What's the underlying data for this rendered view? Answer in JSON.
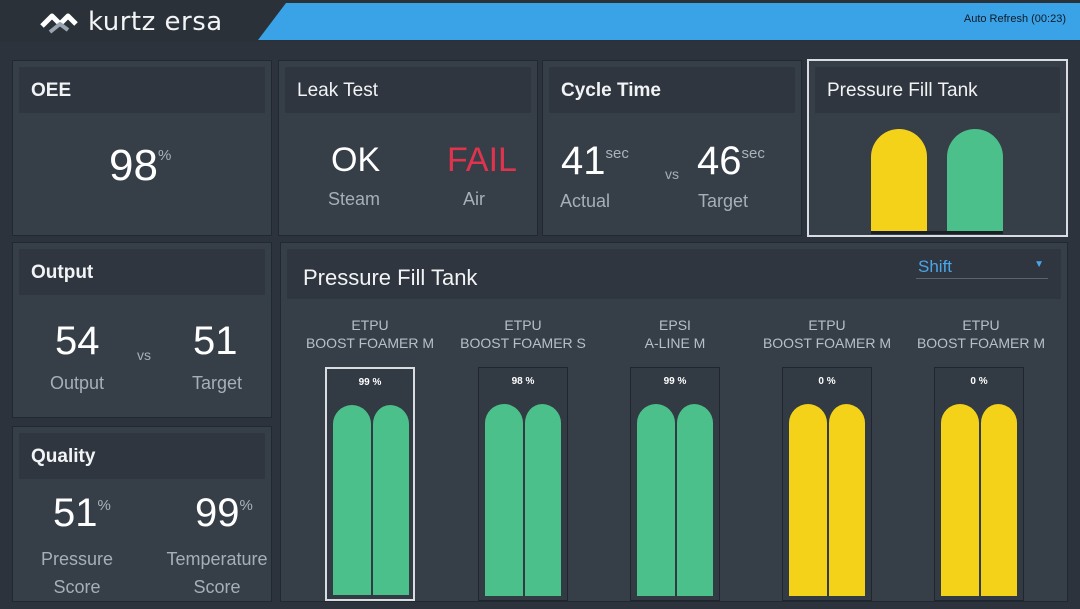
{
  "header": {
    "brand": "kurtz ersa",
    "auto_refresh": "Auto Refresh (00:23)",
    "accent_color": "#3aa3e8"
  },
  "oee": {
    "title": "OEE",
    "value": "98",
    "unit": "%"
  },
  "leak_test": {
    "title": "Leak Test",
    "steam_value": "OK",
    "steam_label": "Steam",
    "air_value": "FAIL",
    "air_label": "Air"
  },
  "cycle_time": {
    "title": "Cycle Time",
    "actual_value": "41",
    "actual_unit": "sec",
    "actual_label": "Actual",
    "vs": "vs",
    "target_value": "46",
    "target_unit": "sec",
    "target_label": "Target"
  },
  "pressure_fill_small": {
    "title": "Pressure Fill Tank",
    "tanks": [
      {
        "color": "yellow"
      },
      {
        "color": "green"
      }
    ]
  },
  "output": {
    "title": "Output",
    "output_value": "54",
    "output_label": "Output",
    "vs": "vs",
    "target_value": "51",
    "target_label": "Target"
  },
  "quality": {
    "title": "Quality",
    "pressure_value": "51",
    "pressure_unit": "%",
    "pressure_label_1": "Pressure",
    "pressure_label_2": "Score",
    "temperature_value": "99",
    "temperature_unit": "%",
    "temperature_label_1": "Temperature",
    "temperature_label_2": "Score"
  },
  "pressure_fill_main": {
    "title": "Pressure Fill Tank",
    "filter": {
      "selected": "Shift"
    },
    "machines": [
      {
        "line1": "ETPU",
        "line2": "BOOST FOAMER M",
        "percent": "99 %",
        "state": "green",
        "selected": true
      },
      {
        "line1": "ETPU",
        "line2": "BOOST FOAMER S",
        "percent": "98 %",
        "state": "green",
        "selected": false
      },
      {
        "line1": "EPSI",
        "line2": "A-LINE M",
        "percent": "99 %",
        "state": "green",
        "selected": false
      },
      {
        "line1": "ETPU",
        "line2": "BOOST FOAMER M",
        "percent": "0 %",
        "state": "yellow",
        "selected": false
      },
      {
        "line1": "ETPU",
        "line2": "BOOST FOAMER M",
        "percent": "0 %",
        "state": "yellow",
        "selected": false
      }
    ]
  },
  "colors": {
    "ok_green": "#4cc08a",
    "warn_yellow": "#f5d21a",
    "fail_red": "#e0334d"
  }
}
